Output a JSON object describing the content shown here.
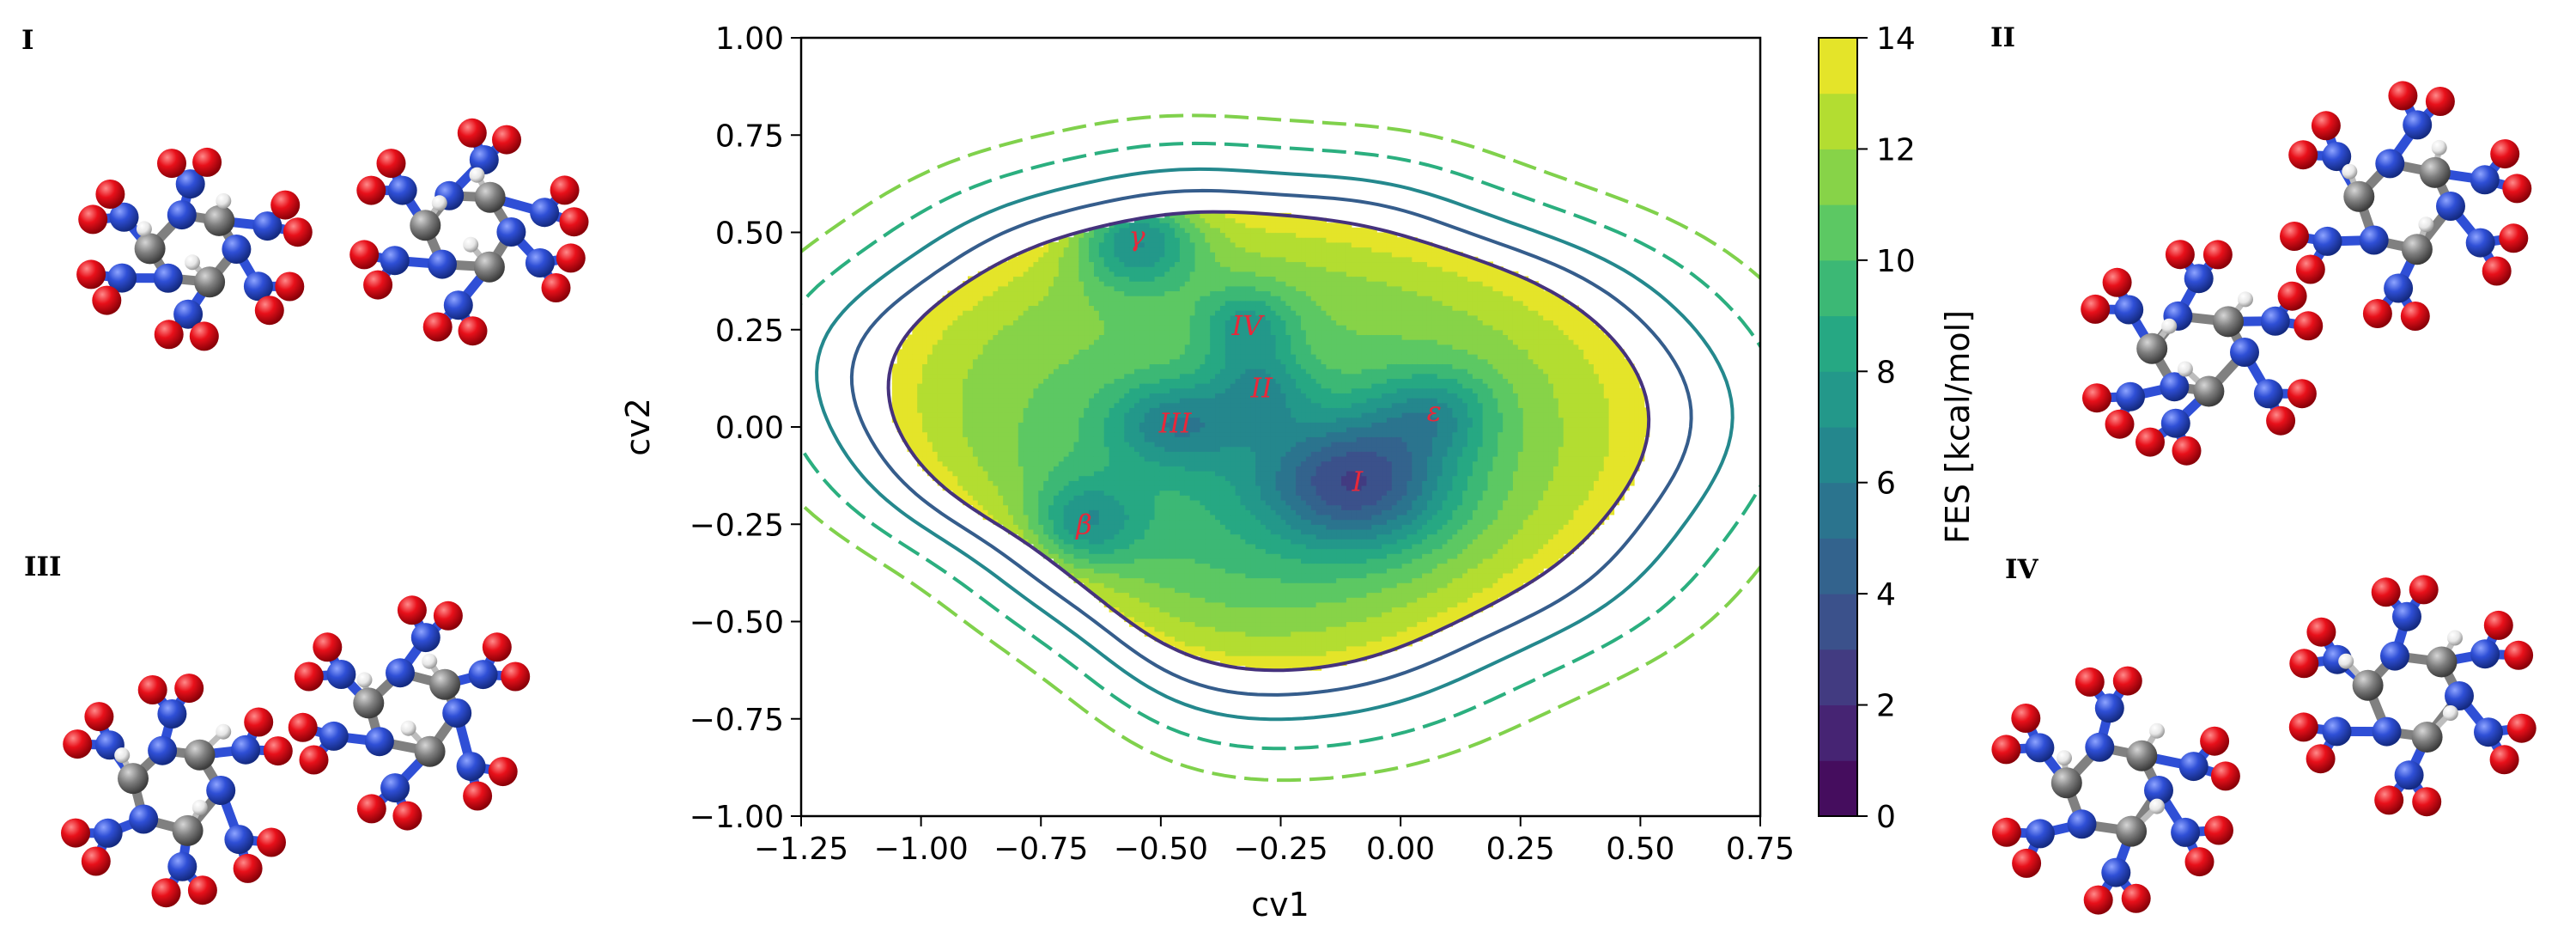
{
  "chart_data": {
    "type": "contour",
    "xlabel": "cv1",
    "ylabel": "cv2",
    "xlim": [
      -1.25,
      0.75
    ],
    "ylim": [
      -1.0,
      1.0
    ],
    "xticks": [
      "−1.25",
      "−1.00",
      "−0.75",
      "−0.50",
      "−0.25",
      "0.00",
      "0.25",
      "0.50",
      "0.75"
    ],
    "xtick_values": [
      -1.25,
      -1.0,
      -0.75,
      -0.5,
      -0.25,
      0.0,
      0.25,
      0.5,
      0.75
    ],
    "yticks": [
      "−1.00",
      "−0.75",
      "−0.50",
      "−0.25",
      "0.00",
      "0.25",
      "0.50",
      "0.75",
      "1.00"
    ],
    "ytick_values": [
      -1.0,
      -0.75,
      -0.5,
      -0.25,
      0.0,
      0.25,
      0.5,
      0.75,
      1.0
    ],
    "colorbar": {
      "label": "FES [kcal/mol]",
      "min": 0,
      "max": 14,
      "ticks": [
        "0",
        "2",
        "4",
        "6",
        "8",
        "10",
        "12",
        "14"
      ],
      "tick_values": [
        0,
        2,
        4,
        6,
        8,
        10,
        12,
        14
      ],
      "levels": 14,
      "colormap": "viridis"
    },
    "grid": false,
    "minima": [
      {
        "label": "γ",
        "x": -0.55,
        "y": 0.49
      },
      {
        "label": "IV",
        "x": -0.32,
        "y": 0.26
      },
      {
        "label": "II",
        "x": -0.29,
        "y": 0.1
      },
      {
        "label": "III",
        "x": -0.47,
        "y": 0.01
      },
      {
        "label": "ε",
        "x": 0.07,
        "y": 0.04
      },
      {
        "label": "I",
        "x": -0.09,
        "y": -0.14
      },
      {
        "label": "β",
        "x": -0.66,
        "y": -0.25
      }
    ],
    "wells": [
      {
        "x": -0.09,
        "y": -0.14,
        "sx": 0.14,
        "sy": 0.12,
        "depth": 7.2
      },
      {
        "x": 0.07,
        "y": 0.04,
        "sx": 0.09,
        "sy": 0.08,
        "depth": 3.5
      },
      {
        "x": -0.55,
        "y": 0.49,
        "sx": 0.09,
        "sy": 0.09,
        "depth": 6.0
      },
      {
        "x": -0.32,
        "y": 0.26,
        "sx": 0.07,
        "sy": 0.07,
        "depth": 3.5
      },
      {
        "x": -0.29,
        "y": 0.1,
        "sx": 0.07,
        "sy": 0.07,
        "depth": 3.0
      },
      {
        "x": -0.47,
        "y": 0.01,
        "sx": 0.1,
        "sy": 0.08,
        "depth": 4.0
      },
      {
        "x": -0.66,
        "y": -0.25,
        "sx": 0.08,
        "sy": 0.08,
        "depth": 4.0
      },
      {
        "x": -0.35,
        "y": -0.15,
        "sx": 0.3,
        "sy": 0.25,
        "depth": 2.0
      }
    ],
    "base_energy": 11.5,
    "boundary": {
      "center": [
        -0.34,
        0.0
      ],
      "outer_lines": [
        {
          "scale": 1.1,
          "value": 15
        },
        {
          "scale": 1.2,
          "value": 16
        },
        {
          "scale": 1.32,
          "value": 17
        },
        {
          "scale": 1.45,
          "value": 18
        }
      ]
    }
  },
  "panels": {
    "left_top": "I",
    "left_bottom": "III",
    "right_top": "II",
    "right_bottom": "IV"
  },
  "colors": {
    "carbon": "#7f7f7f",
    "nitrogen": "#2f4fd6",
    "oxygen": "#e8101a",
    "hydrogen": "#e8e8e8",
    "annotation": "#e8283a"
  }
}
